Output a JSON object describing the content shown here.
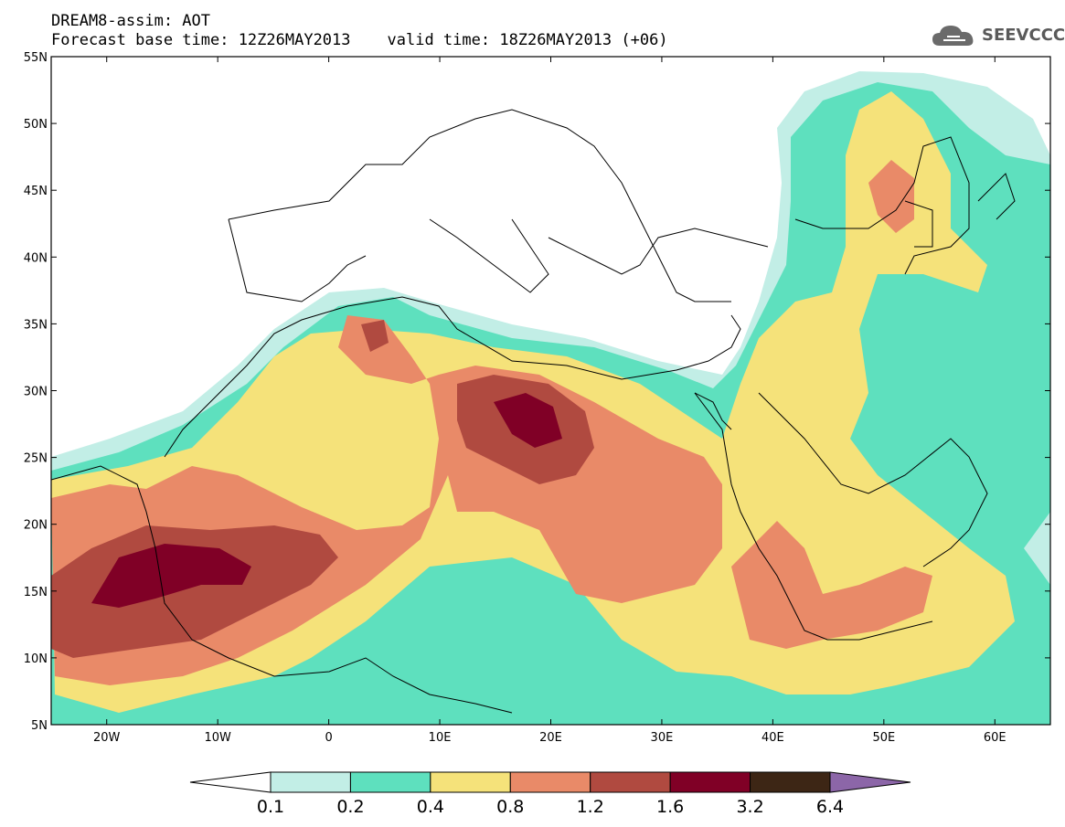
{
  "title": {
    "line1": "DREAM8-assim: AOT",
    "base_time": "Forecast base time: 12Z26MAY2013",
    "valid_time": "valid time: 18Z26MAY2013 (+06)"
  },
  "logo": {
    "text": "SEEVCCC",
    "icon": "cloud-icon"
  },
  "map": {
    "lat_labels": [
      "55N",
      "50N",
      "45N",
      "40N",
      "35N",
      "30N",
      "25N",
      "20N",
      "15N",
      "10N",
      "5N"
    ],
    "lon_labels": [
      "20W",
      "10W",
      "0",
      "10E",
      "20E",
      "30E",
      "40E",
      "50E",
      "60E"
    ],
    "lat_range": [
      5,
      55
    ],
    "lon_range": [
      -25,
      65
    ]
  },
  "colorbar": {
    "levels": [
      "0.1",
      "0.2",
      "0.4",
      "0.8",
      "1.2",
      "1.6",
      "3.2",
      "6.4"
    ],
    "colors": [
      "#c2eee6",
      "#5ee0be",
      "#f5e27a",
      "#e98a68",
      "#b04a40",
      "#800026",
      "#3d2615",
      "#8c66a8"
    ],
    "below_color": "#ffffff"
  }
}
